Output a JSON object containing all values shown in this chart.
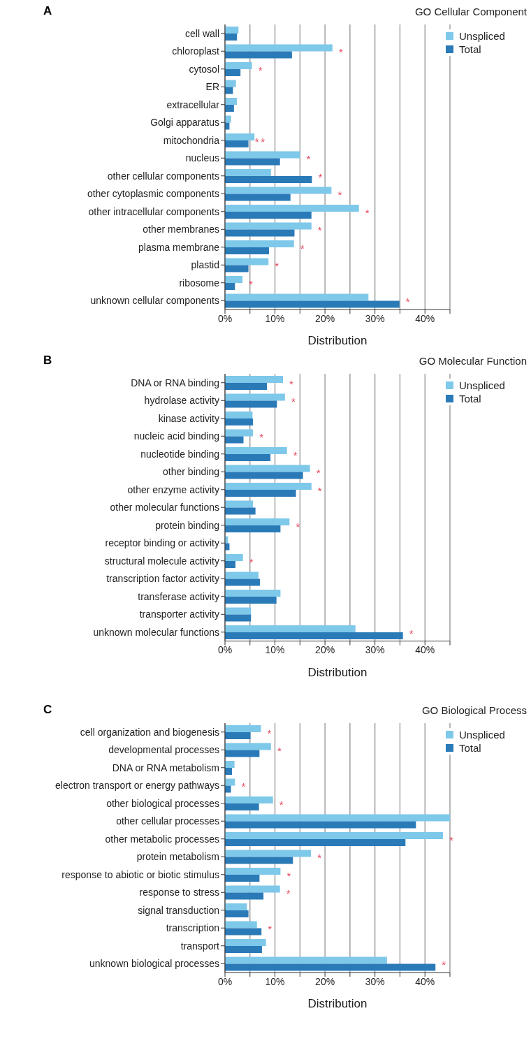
{
  "chart_data": [
    {
      "type": "bar",
      "orientation": "horizontal",
      "title": "GO Cellular Component",
      "xlabel": "Distribution",
      "legend": "top right",
      "grid": "x",
      "xlim": [
        0,
        45
      ],
      "xticks": [
        {
          "value": 0,
          "label": "0%"
        },
        {
          "value": 5,
          "label": null
        },
        {
          "value": 10,
          "label": "10%"
        },
        {
          "value": 15,
          "label": null
        },
        {
          "value": 20,
          "label": "20%"
        },
        {
          "value": 25,
          "label": null
        },
        {
          "value": 30,
          "label": "30%"
        },
        {
          "value": 35,
          "label": null
        },
        {
          "value": 40,
          "label": "40%"
        },
        {
          "value": 45,
          "label": null
        }
      ],
      "categories": [
        "cell wall",
        "chloroplast",
        "cytosol",
        "ER",
        "extracellular",
        "Golgi apparatus",
        "mitochondria",
        "nucleus",
        "other cellular components",
        "other cytoplasmic components",
        "other intracellular components",
        "other membranes",
        "plasma membrane",
        "plastid",
        "ribosome",
        "unknown cellular components"
      ],
      "series": [
        {
          "name": "Unspliced",
          "color": "#7ec8ea",
          "values": [
            2.7,
            21.5,
            5.4,
            2.2,
            2.4,
            1.2,
            5.9,
            15.0,
            9.2,
            21.3,
            26.8,
            17.3,
            13.8,
            8.7,
            3.5,
            28.7
          ]
        },
        {
          "name": "Total",
          "color": "#2a7ab8",
          "values": [
            2.4,
            13.4,
            3.1,
            1.6,
            1.8,
            0.9,
            4.7,
            11.0,
            17.4,
            13.1,
            17.3,
            13.9,
            8.8,
            4.7,
            2.0,
            34.9
          ]
        }
      ],
      "annotations": [
        "A",
        {
          "text": "*",
          "x": 21.5,
          "y": "chloroplast"
        },
        {
          "text": "*",
          "x": 5.4,
          "y": "cytosol"
        },
        {
          "text": "*",
          "x": 4.7,
          "y": "mitochondria"
        },
        {
          "text": "*",
          "x": 5.9,
          "y": "mitochondria"
        },
        {
          "text": "*",
          "x": 15.0,
          "y": "nucleus"
        },
        {
          "text": "*",
          "x": 17.4,
          "y": "other cellular components"
        },
        {
          "text": "*",
          "x": 21.3,
          "y": "other cytoplasmic components"
        },
        {
          "text": "*",
          "x": 26.8,
          "y": "other intracellular components"
        },
        {
          "text": "*",
          "x": 17.3,
          "y": "other membranes"
        },
        {
          "text": "*",
          "x": 13.8,
          "y": "plasma membrane"
        },
        {
          "text": "*",
          "x": 8.7,
          "y": "plastid"
        },
        {
          "text": "*",
          "x": 3.5,
          "y": "ribosome"
        },
        {
          "text": "*",
          "x": 34.9,
          "y": "unknown cellular components"
        }
      ]
    },
    {
      "type": "bar",
      "orientation": "horizontal",
      "title": "GO Molecular Function",
      "xlabel": "Distribution",
      "legend": "top right",
      "grid": "x",
      "xlim": [
        0,
        45
      ],
      "xticks": [
        {
          "value": 0,
          "label": "0%"
        },
        {
          "value": 5,
          "label": null
        },
        {
          "value": 10,
          "label": "10%"
        },
        {
          "value": 15,
          "label": null
        },
        {
          "value": 20,
          "label": "20%"
        },
        {
          "value": 25,
          "label": null
        },
        {
          "value": 30,
          "label": "30%"
        },
        {
          "value": 35,
          "label": null
        },
        {
          "value": 40,
          "label": "40%"
        },
        {
          "value": 45,
          "label": null
        }
      ],
      "categories": [
        "DNA or RNA binding",
        "hydrolase activity",
        "kinase activity",
        "nucleic acid binding",
        "nucleotide binding",
        "other binding",
        "other enzyme activity",
        "other molecular functions",
        "protein binding",
        "receptor binding or activity",
        "structural molecule activity",
        "transcription factor activity",
        "transferase activity",
        "transporter activity",
        "unknown molecular functions"
      ],
      "series": [
        {
          "name": "Unspliced",
          "color": "#7ec8ea",
          "values": [
            11.6,
            12.0,
            5.5,
            5.6,
            12.4,
            17.0,
            17.3,
            5.6,
            12.9,
            0.6,
            3.6,
            6.7,
            11.1,
            5.2,
            26.1
          ]
        },
        {
          "name": "Total",
          "color": "#2a7ab8",
          "values": [
            8.4,
            10.4,
            5.6,
            3.7,
            9.1,
            15.6,
            14.2,
            6.1,
            11.1,
            0.9,
            2.1,
            7.0,
            10.3,
            5.2,
            35.6
          ]
        }
      ],
      "annotations": [
        "B",
        {
          "text": "*",
          "x": 11.6,
          "y": "DNA or RNA binding"
        },
        {
          "text": "*",
          "x": 12.0,
          "y": "hydrolase activity"
        },
        {
          "text": "*",
          "x": 5.6,
          "y": "nucleic acid binding"
        },
        {
          "text": "*",
          "x": 12.4,
          "y": "nucleotide binding"
        },
        {
          "text": "*",
          "x": 17.0,
          "y": "other binding"
        },
        {
          "text": "*",
          "x": 17.3,
          "y": "other enzyme activity"
        },
        {
          "text": "*",
          "x": 12.9,
          "y": "protein binding"
        },
        {
          "text": "*",
          "x": 3.6,
          "y": "structural molecule activity"
        },
        {
          "text": "*",
          "x": 35.6,
          "y": "unknown molecular functions"
        }
      ]
    },
    {
      "type": "bar",
      "orientation": "horizontal",
      "title": "GO Biological Process",
      "xlabel": "Distribution",
      "legend": "top right",
      "grid": "x",
      "xlim": [
        0,
        45
      ],
      "xticks": [
        {
          "value": 0,
          "label": "0%"
        },
        {
          "value": 5,
          "label": null
        },
        {
          "value": 10,
          "label": "10%"
        },
        {
          "value": 15,
          "label": null
        },
        {
          "value": 20,
          "label": "20%"
        },
        {
          "value": 25,
          "label": null
        },
        {
          "value": 30,
          "label": "30%"
        },
        {
          "value": 35,
          "label": null
        },
        {
          "value": 40,
          "label": "40%"
        },
        {
          "value": 45,
          "label": null
        }
      ],
      "categories": [
        "cell organization and biogenesis",
        "developmental processes",
        "DNA or RNA metabolism",
        "electron transport or energy pathways",
        "other biological processes",
        "other cellular processes",
        "other metabolic processes",
        "protein metabolism",
        "response to abiotic or biotic stimulus",
        "response to stress",
        "signal transduction",
        "transcription",
        "transport",
        "unknown biological processes"
      ],
      "series": [
        {
          "name": "Unspliced",
          "color": "#7ec8ea",
          "values": [
            7.2,
            9.2,
            1.9,
            2.0,
            9.6,
            45,
            43.6,
            17.2,
            11.1,
            11.0,
            4.4,
            6.4,
            8.2,
            32.4
          ]
        },
        {
          "name": "Total",
          "color": "#2a7ab8",
          "values": [
            5.1,
            6.9,
            1.4,
            1.2,
            6.8,
            38.2,
            36.1,
            13.6,
            6.9,
            7.7,
            4.7,
            7.3,
            7.4,
            42.1
          ]
        }
      ],
      "annotations": [
        "C",
        {
          "text": "*",
          "x": 7.2,
          "y": "cell organization and biogenesis"
        },
        {
          "text": "*",
          "x": 9.2,
          "y": "developmental processes"
        },
        {
          "text": "*",
          "x": 2.0,
          "y": "electron transport or energy pathways"
        },
        {
          "text": "*",
          "x": 9.6,
          "y": "other biological processes"
        },
        {
          "text": "*",
          "x": 43.6,
          "y": "other metabolic processes"
        },
        {
          "text": "*",
          "x": 17.2,
          "y": "protein metabolism"
        },
        {
          "text": "*",
          "x": 11.1,
          "y": "response to abiotic or biotic stimulus"
        },
        {
          "text": "*",
          "x": 11.0,
          "y": "response to stress"
        },
        {
          "text": "*",
          "x": 7.3,
          "y": "transcription"
        },
        {
          "text": "*",
          "x": 42.1,
          "y": "unknown biological processes"
        }
      ]
    }
  ]
}
